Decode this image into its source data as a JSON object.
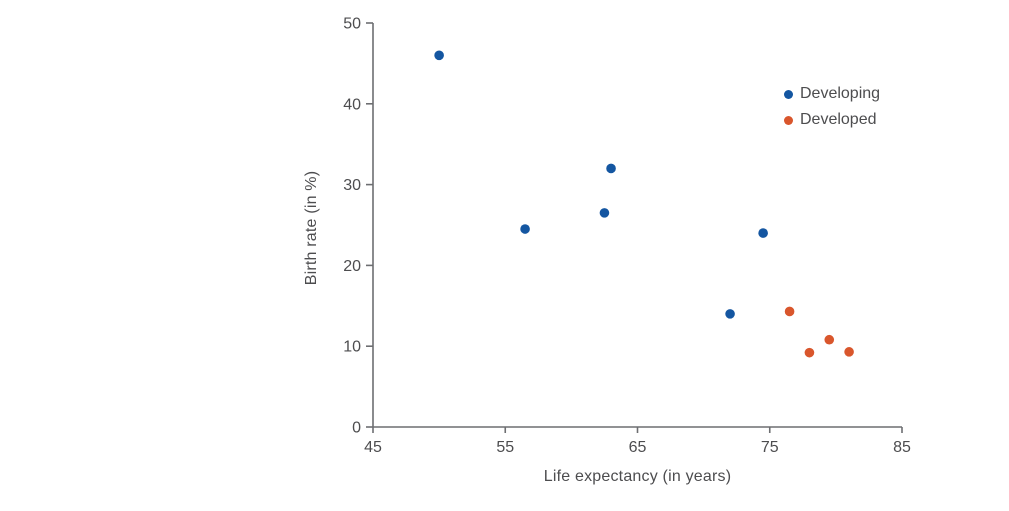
{
  "page": {
    "background": "#ffffff"
  },
  "chart_data": {
    "type": "scatter",
    "title": "",
    "xlabel": "Life expectancy (in years)",
    "ylabel": "Birth rate (in %)",
    "xlim": [
      45,
      85
    ],
    "ylim": [
      0,
      50
    ],
    "x_ticks": [
      45,
      55,
      65,
      75,
      85
    ],
    "y_ticks": [
      0,
      10,
      20,
      30,
      40,
      50
    ],
    "grid": false,
    "legend_position": "upper right",
    "axis_color": "#6d6e71",
    "text_color": "#4d4d4f",
    "series": [
      {
        "name": "Developing",
        "color": "#1456a1",
        "points": [
          [
            50,
            46
          ],
          [
            56.5,
            24.5
          ],
          [
            62.5,
            26.5
          ],
          [
            63,
            32
          ],
          [
            72,
            14
          ],
          [
            74.5,
            24
          ]
        ]
      },
      {
        "name": "Developed",
        "color": "#d9562c",
        "points": [
          [
            76.5,
            14.3
          ],
          [
            78,
            9.2
          ],
          [
            79.5,
            10.8
          ],
          [
            81,
            9.3
          ]
        ]
      }
    ]
  }
}
